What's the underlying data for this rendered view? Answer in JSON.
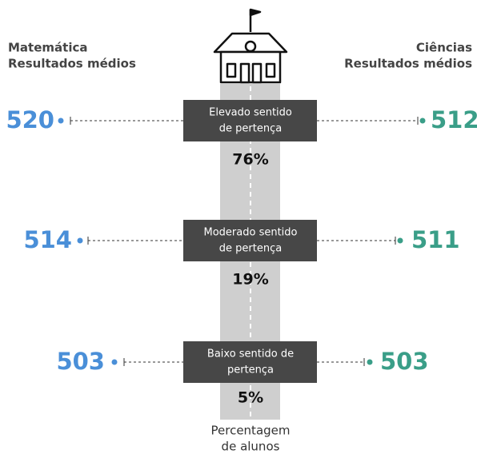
{
  "left_header": {
    "subject": "Matemática",
    "caption": "Resultados médios"
  },
  "right_header": {
    "subject": "Ciências",
    "caption": "Resultados médios"
  },
  "rows": [
    {
      "label": [
        "Elevado sentido",
        "de pertença"
      ],
      "mathematics": 520,
      "science": 512,
      "share": "76%"
    },
    {
      "label": [
        "Moderado sentido",
        "de pertença"
      ],
      "mathematics": 514,
      "science": 511,
      "share": "19%"
    },
    {
      "label": [
        "Baixo  sentido de",
        "pertença"
      ],
      "mathematics": 503,
      "science": 503,
      "share": "5%"
    }
  ],
  "footer": [
    "Percentagem",
    "de alunos"
  ]
}
